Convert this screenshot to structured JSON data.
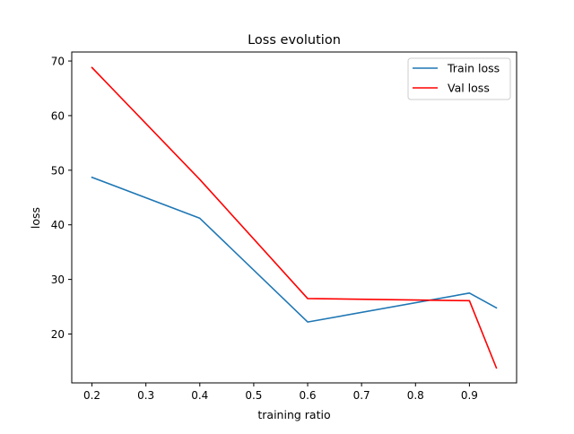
{
  "chart_data": {
    "type": "line",
    "title": "Loss evolution",
    "xlabel": "training ratio",
    "ylabel": "loss",
    "xlim": [
      0.1625,
      0.9875
    ],
    "ylim": [
      11.05,
      71.65
    ],
    "xticks": [
      0.2,
      0.3,
      0.4,
      0.5,
      0.6,
      0.7,
      0.8,
      0.9
    ],
    "xtick_labels": [
      "0.2",
      "0.3",
      "0.4",
      "0.5",
      "0.6",
      "0.7",
      "0.8",
      "0.9"
    ],
    "yticks": [
      20,
      30,
      40,
      50,
      60,
      70
    ],
    "ytick_labels": [
      "20",
      "30",
      "40",
      "50",
      "60",
      "70"
    ],
    "legend_position": "top-right",
    "grid": false,
    "series": [
      {
        "name": "Train loss",
        "color": "#1f77b4",
        "x": [
          0.2,
          0.4,
          0.6,
          0.9,
          0.95
        ],
        "values": [
          48.7,
          41.2,
          22.2,
          27.5,
          24.8
        ]
      },
      {
        "name": "Val loss",
        "color": "#ff0000",
        "x": [
          0.2,
          0.4,
          0.6,
          0.9,
          0.95
        ],
        "values": [
          68.8,
          48.3,
          26.5,
          26.1,
          13.8
        ]
      }
    ]
  }
}
